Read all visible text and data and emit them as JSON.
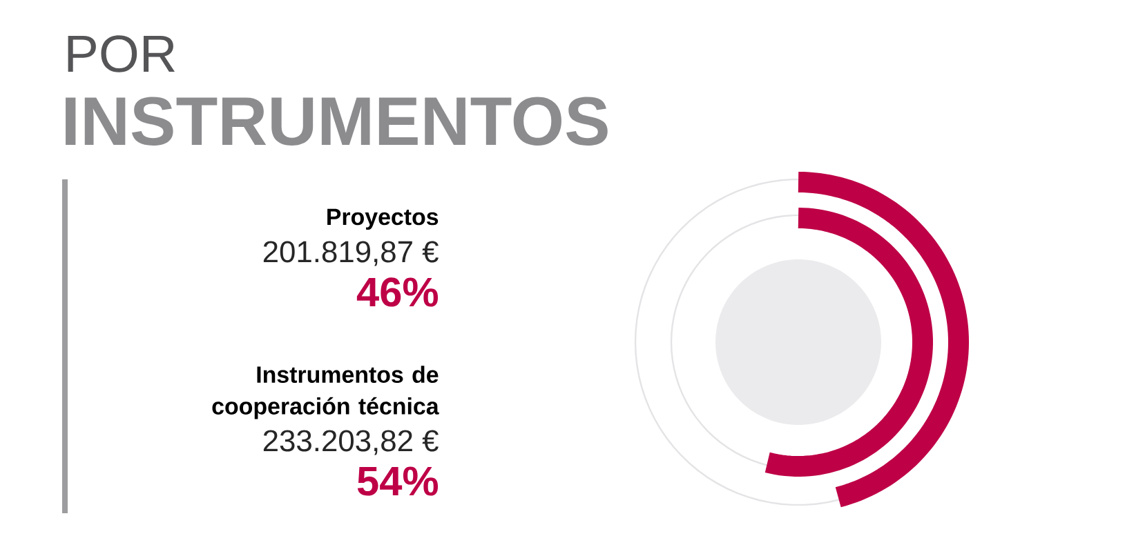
{
  "chart_data": {
    "type": "other",
    "title": "POR",
    "subtitle": "INSTRUMENTOS",
    "categories": [
      "Proyectos",
      "Instrumentos de cooperación técnica"
    ],
    "values": [
      46,
      54
    ],
    "value_labels": [
      "46%",
      "54%"
    ],
    "annotations": [
      "201.819,87 €",
      "233.203,82 €"
    ],
    "color": "#be0046"
  }
}
